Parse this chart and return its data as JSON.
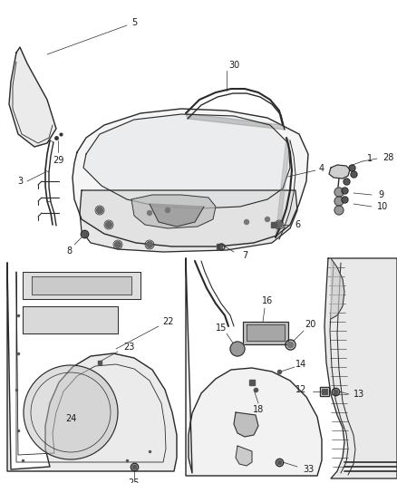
{
  "bg_color": "#ffffff",
  "line_color": "#2a2a2a",
  "fig_width": 4.38,
  "fig_height": 5.33,
  "dpi": 100,
  "gray_fill": "#c8c8c8",
  "mid_gray": "#aaaaaa",
  "dark_gray": "#888888",
  "light_gray": "#e8e8e8"
}
